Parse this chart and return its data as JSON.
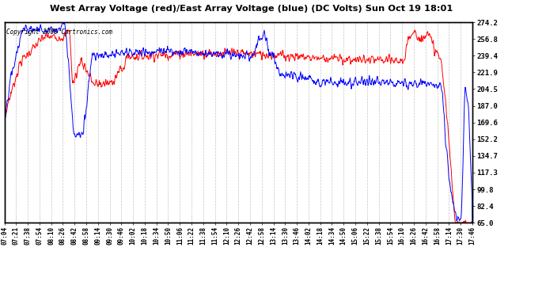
{
  "title": "West Array Voltage (red)/East Array Voltage (blue) (DC Volts) Sun Oct 19 18:01",
  "copyright": "Copyright 2008 Cartronics.com",
  "ylabel_right": [
    "274.2",
    "256.8",
    "239.4",
    "221.9",
    "204.5",
    "187.0",
    "169.6",
    "152.2",
    "134.7",
    "117.3",
    "99.8",
    "82.4",
    "65.0"
  ],
  "yticks": [
    274.2,
    256.8,
    239.4,
    221.9,
    204.5,
    187.0,
    169.6,
    152.2,
    134.7,
    117.3,
    99.8,
    82.4,
    65.0
  ],
  "ymin": 65.0,
  "ymax": 274.2,
  "bg_color": "#ffffff",
  "plot_bg_color": "#ffffff",
  "grid_color": "#aaaaaa",
  "red_color": "#ff0000",
  "blue_color": "#0000ff",
  "title_color": "#000000",
  "x_labels": [
    "07:04",
    "07:21",
    "07:38",
    "07:54",
    "08:10",
    "08:26",
    "08:42",
    "08:58",
    "09:14",
    "09:30",
    "09:46",
    "10:02",
    "10:18",
    "10:34",
    "10:50",
    "11:06",
    "11:22",
    "11:38",
    "11:54",
    "12:10",
    "12:26",
    "12:42",
    "12:58",
    "13:14",
    "13:30",
    "13:46",
    "14:02",
    "14:18",
    "14:34",
    "14:50",
    "15:06",
    "15:22",
    "15:38",
    "15:54",
    "16:10",
    "16:26",
    "16:42",
    "16:58",
    "17:14",
    "17:30",
    "17:46"
  ]
}
